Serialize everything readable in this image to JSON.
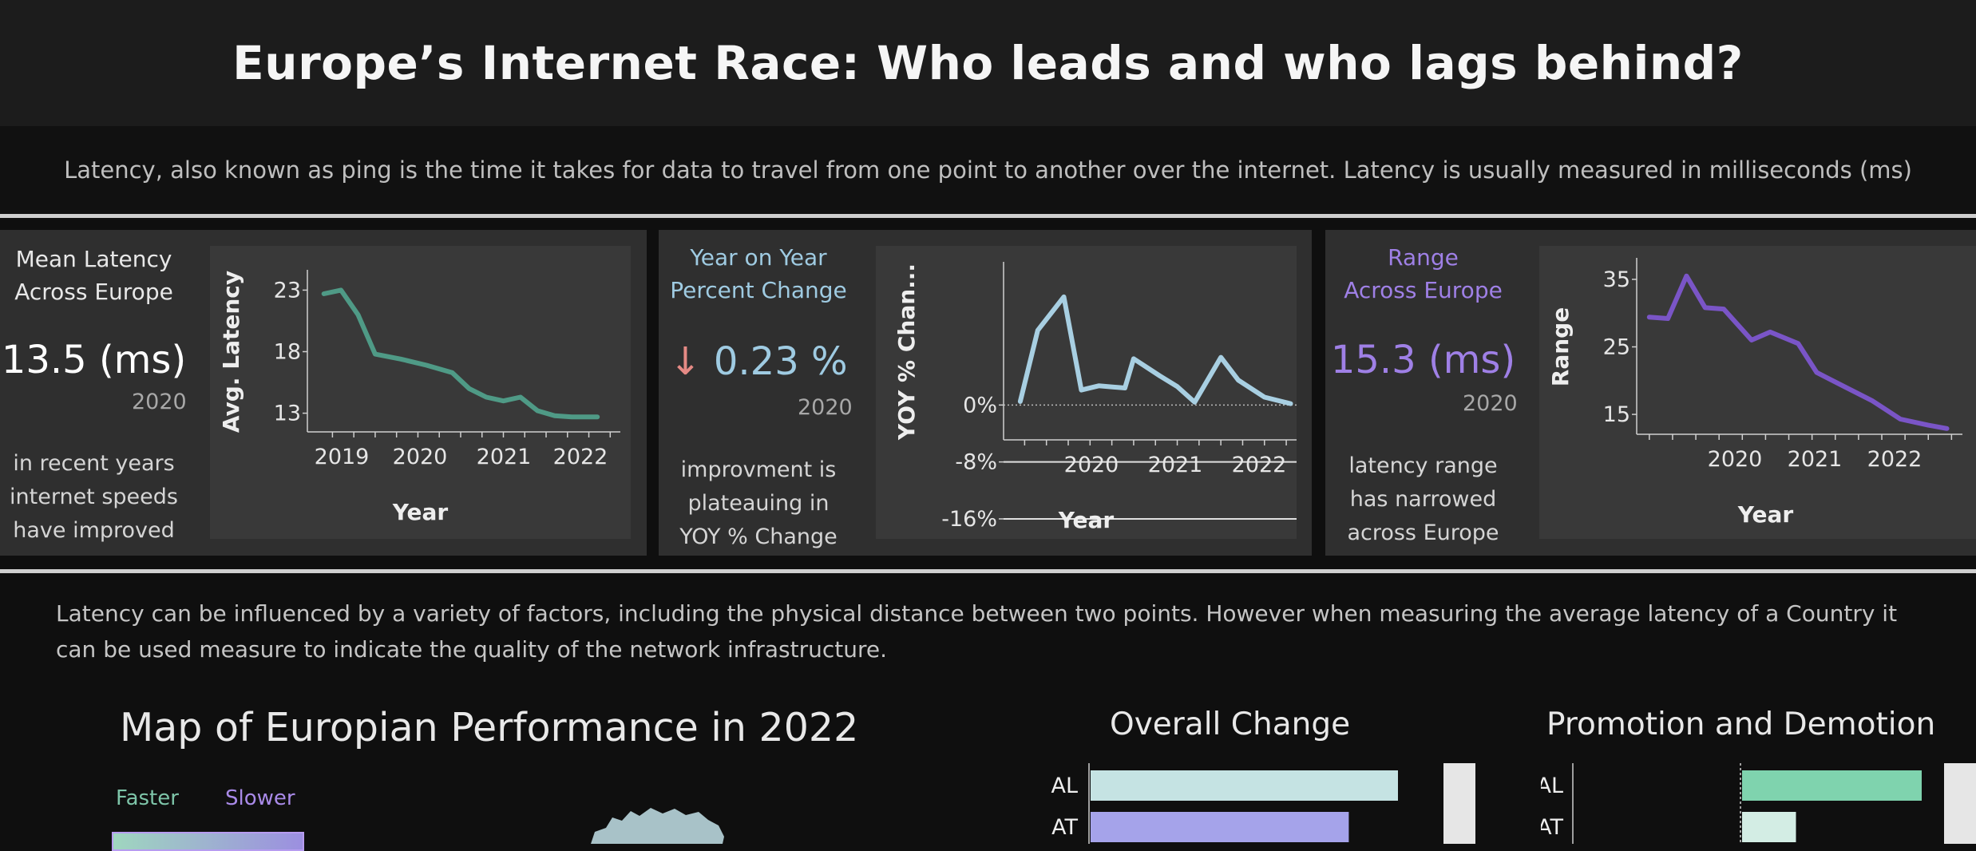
{
  "header": {
    "title": "Europe’s Internet Race: Who leads and who lags behind?"
  },
  "intro": {
    "text": "Latency, also known as ping is the time it takes for data to travel from one point to another over the internet. Latency is usually measured in milliseconds (ms)"
  },
  "kpis": [
    {
      "title_line1": "Mean Latency",
      "title_line2": "Across Europe",
      "value": "13.5 (ms)",
      "year": "2020",
      "desc_line1": "in recent years",
      "desc_line2": "internet speeds",
      "desc_line3": "have improved",
      "color": "#ffffff"
    },
    {
      "title_line1": "Year on Year",
      "title_line2": "Percent Change",
      "arrow": "↓",
      "value": "0.23 %",
      "year": "2020",
      "desc_line1": "improvment is",
      "desc_line2": "plateauing in",
      "desc_line3": "YOY % Change",
      "color": "#9fcbe2"
    },
    {
      "title_line1": "Range",
      "title_line2": "Across Europe",
      "value": "15.3 (ms)",
      "year": "2020",
      "desc_line1": "latency range",
      "desc_line2": "has narrowed",
      "desc_line3": "across Europe",
      "color": "#9f80e6"
    }
  ],
  "paragraph": {
    "text": "Latency can be influenced by a variety of factors, including the physical distance between two points. However when measuring the average latency of a Country it can be used measure to indicate the quality of the network infrastructure."
  },
  "map": {
    "title": "Map of Europian Performance in 2022",
    "legend_faster": "Faster",
    "legend_slower": "Slower"
  },
  "overall_change": {
    "title": "Overall Change"
  },
  "promotion": {
    "title": "Promotion and Demotion"
  },
  "chart_data": [
    {
      "type": "line",
      "ylabel": "Avg. Latency",
      "xlabel": "Year",
      "x_ticks": [
        "2019",
        "2020",
        "2021",
        "2022"
      ],
      "y_ticks": [
        13,
        18,
        23
      ],
      "ylim": [
        12,
        24
      ],
      "x": [
        2018.9,
        2019.1,
        2019.3,
        2019.5,
        2019.8,
        2020.1,
        2020.4,
        2020.6,
        2020.8,
        2021.0,
        2021.2,
        2021.4,
        2021.6,
        2021.8,
        2022.1
      ],
      "values": [
        22.7,
        23.0,
        21.0,
        17.8,
        17.4,
        16.9,
        16.3,
        15.0,
        14.3,
        14.0,
        14.3,
        13.2,
        12.8,
        12.7,
        12.7
      ],
      "color": "#4f9a86"
    },
    {
      "type": "line",
      "ylabel": "YOY % Chan...",
      "xlabel": "Year",
      "x_ticks": [
        "2020",
        "2021",
        "2022"
      ],
      "y_ticks": [
        "-16%",
        "-8%",
        "0%"
      ],
      "ylim": [
        -19,
        4
      ],
      "y_reversed": true,
      "x": [
        2019.2,
        2019.4,
        2019.7,
        2019.9,
        2020.1,
        2020.4,
        2020.5,
        2020.8,
        2021.0,
        2021.2,
        2021.5,
        2021.7,
        2022.0,
        2022.3
      ],
      "values": [
        -0.5,
        -10.5,
        -15.2,
        -2.1,
        -2.7,
        -2.4,
        -6.5,
        -4.1,
        -2.6,
        -0.4,
        -6.7,
        -3.5,
        -1.1,
        -0.2
      ],
      "color": "#a8cfe2"
    },
    {
      "type": "line",
      "ylabel": "Range",
      "xlabel": "Year",
      "x_ticks": [
        "2020",
        "2021",
        "2022"
      ],
      "y_ticks": [
        15,
        25,
        35
      ],
      "ylim": [
        13,
        37
      ],
      "x": [
        2019.0,
        2019.2,
        2019.4,
        2019.6,
        2019.8,
        2020.1,
        2020.3,
        2020.6,
        2020.8,
        2021.1,
        2021.4,
        2021.7,
        2022.0,
        2022.2
      ],
      "values": [
        29.4,
        29.2,
        35.5,
        30.8,
        30.6,
        26.0,
        27.2,
        25.5,
        21.2,
        19.1,
        17.0,
        14.3,
        13.4,
        12.9
      ],
      "color": "#7a55c7"
    },
    {
      "type": "bar",
      "title": "Overall Change",
      "categories": [
        "AL",
        "AT"
      ],
      "values": [
        1.0,
        0.84
      ],
      "colors": [
        "#c5e3e3",
        "#a5a3ea"
      ]
    },
    {
      "type": "bar",
      "title": "Promotion and Demotion",
      "categories": [
        "AL",
        "AT"
      ],
      "values": [
        1.0,
        0.3
      ],
      "colors": [
        "#7fd3ae",
        "#d3ede4"
      ]
    }
  ]
}
